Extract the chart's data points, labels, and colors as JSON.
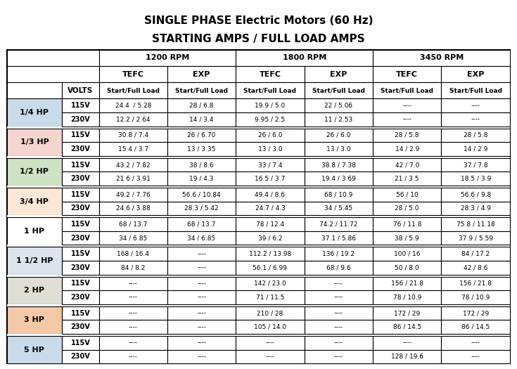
{
  "title_line1": "SINGLE PHASE Electric Motors (60 Hz)",
  "title_line2": "STARTING AMPS / FULL LOAD AMPS",
  "rpm_headers": [
    "1200 RPM",
    "1800 RPM",
    "3450 RPM"
  ],
  "sub_headers": [
    "TEFC",
    "EXP",
    "TEFC",
    "EXP",
    "TEFC",
    "EXP"
  ],
  "col_header_volts": "VOLTS",
  "col_header_data": "Start/Full Load",
  "hp_labels": [
    "1/4 HP",
    "1/3 HP",
    "1/2 HP",
    "3/4 HP",
    "1 HP",
    "1 1/2 HP",
    "2 HP",
    "3 HP",
    "5 HP"
  ],
  "hp_colors": [
    "#c9daea",
    "#f5d5d0",
    "#cfe2c4",
    "#fde8d8",
    "#ffffff",
    "#dce3ed",
    "#deded4",
    "#f5c8a8",
    "#c9daea"
  ],
  "volts": [
    "115V",
    "230V"
  ],
  "table_data": [
    [
      "24.4  / 5.28",
      "28 / 6.8",
      "19.9 / 5.0",
      "22 / 5.06",
      "----",
      "----"
    ],
    [
      "12.2 / 2.64",
      "14 / 3.4",
      "9.95 / 2.5",
      "11 / 2.53",
      "----",
      "----"
    ],
    [
      "30.8 / 7.4",
      "26 / 6.70",
      "26 / 6.0",
      "26 / 6.0",
      "28 / 5.8",
      "28 / 5.8"
    ],
    [
      "15.4 / 3.7",
      "13 / 3.35",
      "13 / 3.0",
      "13 / 3.0",
      "14 / 2.9",
      "14 / 2.9"
    ],
    [
      "43.2 / 7.82",
      "38 / 8.6",
      "33 / 7.4",
      "38.8 / 7.38",
      "42 / 7.0",
      "37 / 7.8"
    ],
    [
      "21.6 / 3.91",
      "19 / 4.3",
      "16.5 / 3.7",
      "19.4 / 3.69",
      "21 / 3.5",
      "18.5 / 3.9"
    ],
    [
      "49.2 / 7.76",
      "56.6 / 10.84",
      "49.4 / 8.6",
      "68 / 10.9",
      "56 / 10",
      "56.6 / 9.8"
    ],
    [
      "24.6 / 3.88",
      "28.3 / 5.42",
      "24.7 / 4.3",
      "34 / 5.45",
      "28 / 5.0",
      "28.3 / 4.9"
    ],
    [
      "68 / 13.7",
      "68 / 13.7",
      "78 / 12.4",
      "74.2 / 11.72",
      "76 / 11.8",
      "75.8 / 11.18"
    ],
    [
      "34 / 6.85",
      "34 / 6.85",
      "39 / 6.2",
      "37.1 / 5.86",
      "38 / 5.9",
      "37.9 / 5.59"
    ],
    [
      "168 / 16.4",
      "----",
      "112.2 / 13.98",
      "136 / 19.2",
      "100 / 16",
      "84 / 17.2"
    ],
    [
      "84 / 8.2",
      "----",
      "56.1 / 6.99",
      "68 / 9.6",
      "50 / 8.0",
      "42 / 8.6"
    ],
    [
      "----",
      "----",
      "142 / 23.0",
      "----",
      "156 / 21.8",
      "156 / 21.8"
    ],
    [
      "----",
      "----",
      "71 / 11.5",
      "----",
      "78 / 10.9",
      "78 / 10.9"
    ],
    [
      "----",
      "----",
      "210 / 28",
      "----",
      "172 / 29",
      "172 / 29"
    ],
    [
      "----",
      "----",
      "105 / 14.0",
      "----",
      "86 / 14.5",
      "86 / 14.5"
    ],
    [
      "----",
      "----",
      "----",
      "----",
      "----",
      "----"
    ],
    [
      "----",
      "----",
      "----",
      "----",
      "128 / 19.6",
      "----"
    ]
  ],
  "bg_color": "#ffffff",
  "title_fontsize": 11,
  "header_fontsize": 8,
  "data_fontsize": 6.5,
  "volts_fontsize": 7,
  "hp_fontsize": 8
}
